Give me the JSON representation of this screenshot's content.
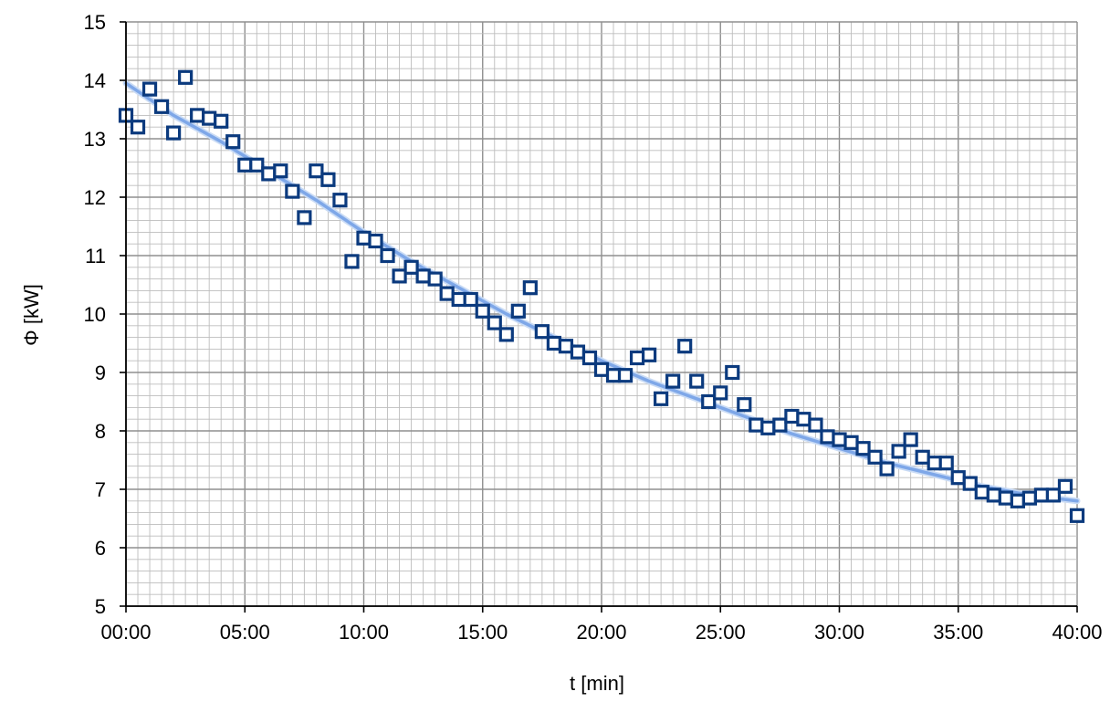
{
  "colors": {
    "marker": "#0b3a7e",
    "trendline": "#7ea7e8",
    "minor_grid": "#bdbdbd",
    "major_grid": "#8f8f8f",
    "axis": "#000000"
  },
  "chart_data": {
    "type": "scatter",
    "xlabel": "t [min]",
    "ylabel": "Φ [kW]",
    "xlim": [
      0,
      40
    ],
    "ylim": [
      5,
      15
    ],
    "x_ticks": [
      0,
      5,
      10,
      15,
      20,
      25,
      30,
      35,
      40
    ],
    "x_tick_labels": [
      "00:00",
      "05:00",
      "10:00",
      "15:00",
      "20:00",
      "25:00",
      "30:00",
      "35:00",
      "40:00"
    ],
    "y_ticks": [
      5,
      6,
      7,
      8,
      9,
      10,
      11,
      12,
      13,
      14,
      15
    ],
    "y_tick_labels": [
      "5",
      "6",
      "7",
      "8",
      "9",
      "10",
      "11",
      "12",
      "13",
      "14",
      "15"
    ],
    "grid": true,
    "minor_grid": true,
    "legend": "none",
    "series": [
      {
        "marker": "hollow-square",
        "points": [
          {
            "x": 0.0,
            "y": 13.4
          },
          {
            "x": 0.5,
            "y": 13.2
          },
          {
            "x": 1.0,
            "y": 13.85
          },
          {
            "x": 1.5,
            "y": 13.55
          },
          {
            "x": 2.0,
            "y": 13.1
          },
          {
            "x": 2.5,
            "y": 14.05
          },
          {
            "x": 3.0,
            "y": 13.4
          },
          {
            "x": 3.5,
            "y": 13.35
          },
          {
            "x": 4.0,
            "y": 13.3
          },
          {
            "x": 4.5,
            "y": 12.95
          },
          {
            "x": 5.0,
            "y": 12.55
          },
          {
            "x": 5.5,
            "y": 12.55
          },
          {
            "x": 6.0,
            "y": 12.4
          },
          {
            "x": 6.5,
            "y": 12.45
          },
          {
            "x": 7.0,
            "y": 12.1
          },
          {
            "x": 7.5,
            "y": 11.65
          },
          {
            "x": 8.0,
            "y": 12.45
          },
          {
            "x": 8.5,
            "y": 12.3
          },
          {
            "x": 9.0,
            "y": 11.95
          },
          {
            "x": 9.5,
            "y": 10.9
          },
          {
            "x": 10.0,
            "y": 11.3
          },
          {
            "x": 10.5,
            "y": 11.25
          },
          {
            "x": 11.0,
            "y": 11.0
          },
          {
            "x": 11.5,
            "y": 10.65
          },
          {
            "x": 12.0,
            "y": 10.8
          },
          {
            "x": 12.5,
            "y": 10.65
          },
          {
            "x": 13.0,
            "y": 10.6
          },
          {
            "x": 13.5,
            "y": 10.35
          },
          {
            "x": 14.0,
            "y": 10.25
          },
          {
            "x": 14.5,
            "y": 10.25
          },
          {
            "x": 15.0,
            "y": 10.05
          },
          {
            "x": 15.5,
            "y": 9.85
          },
          {
            "x": 16.0,
            "y": 9.65
          },
          {
            "x": 16.5,
            "y": 10.05
          },
          {
            "x": 17.0,
            "y": 10.45
          },
          {
            "x": 17.5,
            "y": 9.7
          },
          {
            "x": 18.0,
            "y": 9.5
          },
          {
            "x": 18.5,
            "y": 9.45
          },
          {
            "x": 19.0,
            "y": 9.35
          },
          {
            "x": 19.5,
            "y": 9.25
          },
          {
            "x": 20.0,
            "y": 9.05
          },
          {
            "x": 20.5,
            "y": 8.95
          },
          {
            "x": 21.0,
            "y": 8.95
          },
          {
            "x": 21.5,
            "y": 9.25
          },
          {
            "x": 22.0,
            "y": 9.3
          },
          {
            "x": 22.5,
            "y": 8.55
          },
          {
            "x": 23.0,
            "y": 8.85
          },
          {
            "x": 23.5,
            "y": 9.45
          },
          {
            "x": 24.0,
            "y": 8.85
          },
          {
            "x": 24.5,
            "y": 8.5
          },
          {
            "x": 25.0,
            "y": 8.65
          },
          {
            "x": 25.5,
            "y": 9.0
          },
          {
            "x": 26.0,
            "y": 8.45
          },
          {
            "x": 26.5,
            "y": 8.1
          },
          {
            "x": 27.0,
            "y": 8.05
          },
          {
            "x": 27.5,
            "y": 8.1
          },
          {
            "x": 28.0,
            "y": 8.25
          },
          {
            "x": 28.5,
            "y": 8.2
          },
          {
            "x": 29.0,
            "y": 8.1
          },
          {
            "x": 29.5,
            "y": 7.9
          },
          {
            "x": 30.0,
            "y": 7.85
          },
          {
            "x": 30.5,
            "y": 7.8
          },
          {
            "x": 31.0,
            "y": 7.7
          },
          {
            "x": 31.5,
            "y": 7.55
          },
          {
            "x": 32.0,
            "y": 7.35
          },
          {
            "x": 32.5,
            "y": 7.65
          },
          {
            "x": 33.0,
            "y": 7.85
          },
          {
            "x": 33.5,
            "y": 7.55
          },
          {
            "x": 34.0,
            "y": 7.45
          },
          {
            "x": 34.5,
            "y": 7.45
          },
          {
            "x": 35.0,
            "y": 7.2
          },
          {
            "x": 35.5,
            "y": 7.1
          },
          {
            "x": 36.0,
            "y": 6.95
          },
          {
            "x": 36.5,
            "y": 6.9
          },
          {
            "x": 37.0,
            "y": 6.85
          },
          {
            "x": 37.5,
            "y": 6.8
          },
          {
            "x": 38.0,
            "y": 6.85
          },
          {
            "x": 38.5,
            "y": 6.9
          },
          {
            "x": 39.0,
            "y": 6.9
          },
          {
            "x": 39.5,
            "y": 7.05
          },
          {
            "x": 40.0,
            "y": 6.55
          }
        ]
      }
    ],
    "trendline": {
      "type": "polynomial",
      "points": [
        {
          "x": 0,
          "y": 13.95
        },
        {
          "x": 2,
          "y": 13.4
        },
        {
          "x": 4,
          "y": 12.95
        },
        {
          "x": 6,
          "y": 12.45
        },
        {
          "x": 8,
          "y": 11.95
        },
        {
          "x": 10,
          "y": 11.4
        },
        {
          "x": 12,
          "y": 10.9
        },
        {
          "x": 14,
          "y": 10.45
        },
        {
          "x": 16,
          "y": 10.0
        },
        {
          "x": 18,
          "y": 9.6
        },
        {
          "x": 20,
          "y": 9.2
        },
        {
          "x": 22,
          "y": 8.85
        },
        {
          "x": 24,
          "y": 8.55
        },
        {
          "x": 26,
          "y": 8.25
        },
        {
          "x": 28,
          "y": 7.95
        },
        {
          "x": 30,
          "y": 7.7
        },
        {
          "x": 32,
          "y": 7.45
        },
        {
          "x": 34,
          "y": 7.25
        },
        {
          "x": 36,
          "y": 7.05
        },
        {
          "x": 38,
          "y": 6.9
        },
        {
          "x": 40,
          "y": 6.8
        }
      ]
    }
  }
}
